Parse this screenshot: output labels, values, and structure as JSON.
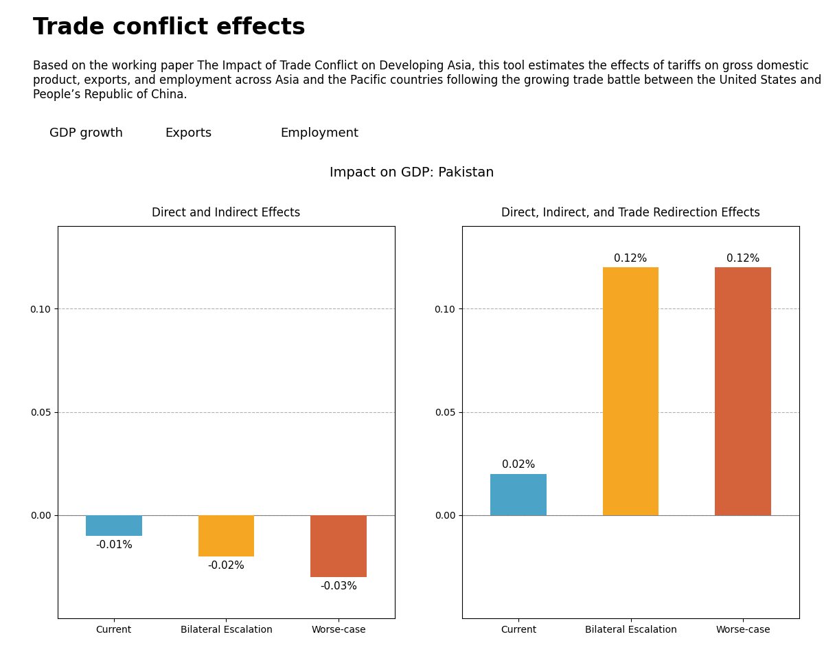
{
  "title": "Trade conflict effects",
  "subtitle": "Based on the working paper The Impact of Trade Conflict on Developing Asia, this tool estimates the effects of tariffs on gross domestic product, exports, and employment across Asia and the Pacific countries following the growing trade battle between the United States and People’s Republic of China.",
  "annotations": [
    "GDP growth",
    "Exports",
    "Employment",
    "Impact on GDP: Pakistan"
  ],
  "chart_data": [
    {
      "type": "bar",
      "title": "Direct and Indirect Effects",
      "categories": [
        "Current",
        "Bilateral Escalation",
        "Worse-case"
      ],
      "values": [
        -0.01,
        -0.02,
        -0.03
      ],
      "value_labels": [
        "-0.01%",
        "-0.02%",
        "-0.03%"
      ],
      "colors": [
        "#4BA3C7",
        "#F5A623",
        "#D4623A"
      ],
      "data_labels": true,
      "ylim": [
        -0.05,
        0.14
      ],
      "yticks": [
        {
          "value": 0.0,
          "label": "0.00"
        },
        {
          "value": 0.05,
          "label": "0.05"
        },
        {
          "value": 0.1,
          "label": "0.10"
        }
      ],
      "grid": true
    },
    {
      "type": "bar",
      "title": "Direct, Indirect, and Trade Redirection Effects",
      "categories": [
        "Current",
        "Bilateral Escalation",
        "Worse-case"
      ],
      "values": [
        0.02,
        0.12,
        0.12
      ],
      "value_labels": [
        "0.02%",
        "0.12%",
        "0.12%"
      ],
      "colors": [
        "#4BA3C7",
        "#F5A623",
        "#D4623A"
      ],
      "data_labels": true,
      "ylim": [
        -0.05,
        0.14
      ],
      "yticks": [
        {
          "value": 0.0,
          "label": "0.00"
        },
        {
          "value": 0.05,
          "label": "0.05"
        },
        {
          "value": 0.1,
          "label": "0.10"
        }
      ],
      "grid": true
    }
  ]
}
